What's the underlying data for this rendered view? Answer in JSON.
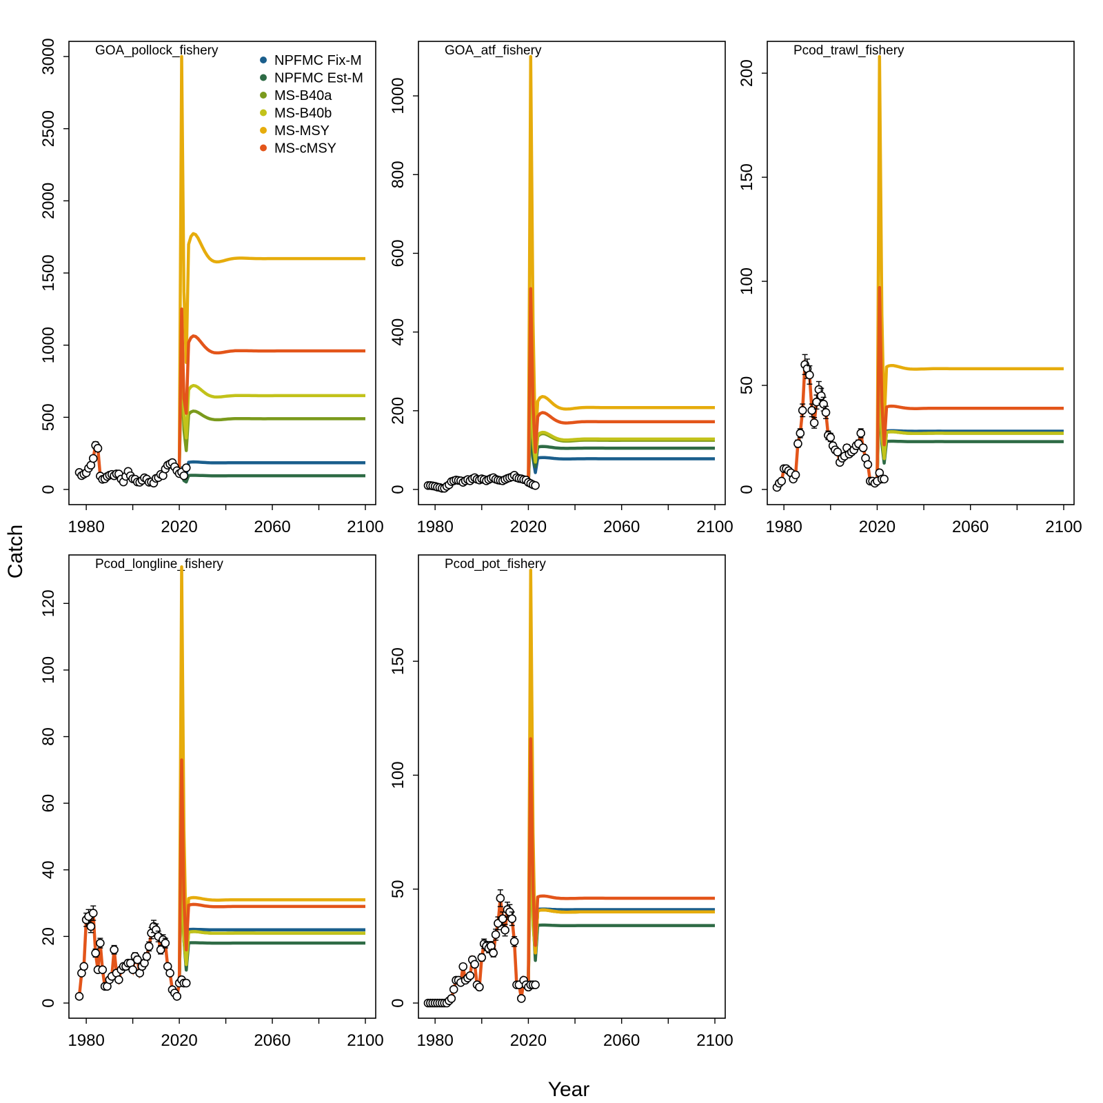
{
  "figure": {
    "ylabel": "Catch",
    "xlabel": "Year"
  },
  "colors": {
    "NPFMC Fix-M": "#1a5e8c",
    "NPFMC Est-M": "#2e6b45",
    "MS-B40a": "#7a9a1c",
    "MS-B40b": "#c2c21a",
    "MS-MSY": "#e6ac0c",
    "MS-cMSY": "#e3551a",
    "observed": "#000000"
  },
  "legend": {
    "location": "top-right of first panel",
    "entries": [
      "NPFMC Fix-M",
      "NPFMC Est-M",
      "MS-B40a",
      "MS-B40b",
      "MS-MSY",
      "MS-cMSY"
    ]
  },
  "chart_data": [
    {
      "type": "line",
      "title": "GOA_pollock_fishery",
      "xlim": [
        1977,
        2100
      ],
      "ylim": [
        0,
        3000
      ],
      "xticks": [
        1980,
        2020,
        2060,
        2100
      ],
      "yticks": [
        0,
        500,
        1000,
        1500,
        2000,
        2500,
        3000
      ],
      "observed": {
        "x": [
          1977,
          1978,
          1979,
          1980,
          1981,
          1982,
          1983,
          1984,
          1985,
          1986,
          1987,
          1988,
          1989,
          1990,
          1991,
          1992,
          1993,
          1994,
          1995,
          1996,
          1997,
          1998,
          1999,
          2000,
          2001,
          2002,
          2003,
          2004,
          2005,
          2006,
          2007,
          2008,
          2009,
          2010,
          2011,
          2012,
          2013,
          2014,
          2015,
          2016,
          2017,
          2018,
          2019,
          2020,
          2021,
          2022,
          2023
        ],
        "y": [
          118,
          96,
          106,
          115,
          147,
          168,
          215,
          306,
          285,
          93,
          70,
          74,
          90,
          99,
          104,
          95,
          108,
          107,
          72,
          52,
          91,
          125,
          95,
          74,
          71,
          52,
          50,
          63,
          81,
          72,
          50,
          52,
          44,
          77,
          82,
          104,
          96,
          142,
          168,
          177,
          186,
          157,
          130,
          110,
          120,
          95,
          150
        ]
      },
      "series": [
        {
          "name": "NPFMC Fix-M",
          "equilibrium": 185
        },
        {
          "name": "NPFMC Est-M",
          "equilibrium": 95
        },
        {
          "name": "MS-B40a",
          "equilibrium": 490
        },
        {
          "name": "MS-B40b",
          "equilibrium": 650
        },
        {
          "name": "MS-MSY",
          "equilibrium": 1600
        },
        {
          "name": "MS-cMSY",
          "equilibrium": 960
        }
      ]
    },
    {
      "type": "line",
      "title": "GOA_atf_fishery",
      "xlim": [
        1977,
        2100
      ],
      "ylim": [
        0,
        1100
      ],
      "xticks": [
        1980,
        2020,
        2060,
        2100
      ],
      "yticks": [
        0,
        200,
        400,
        600,
        800,
        1000
      ],
      "observed": {
        "x": [
          1977,
          1978,
          1979,
          1980,
          1981,
          1982,
          1983,
          1984,
          1985,
          1986,
          1987,
          1988,
          1989,
          1990,
          1991,
          1992,
          1993,
          1994,
          1995,
          1996,
          1997,
          1998,
          1999,
          2000,
          2001,
          2002,
          2003,
          2004,
          2005,
          2006,
          2007,
          2008,
          2009,
          2010,
          2011,
          2012,
          2013,
          2014,
          2015,
          2016,
          2017,
          2018,
          2019,
          2020,
          2021,
          2022,
          2023
        ],
        "y": [
          10,
          10,
          9,
          8,
          6,
          5,
          3,
          3,
          8,
          12,
          20,
          22,
          24,
          23,
          22,
          18,
          22,
          25,
          22,
          27,
          30,
          26,
          24,
          27,
          25,
          22,
          25,
          28,
          30,
          26,
          24,
          23,
          22,
          25,
          28,
          30,
          32,
          36,
          30,
          28,
          27,
          25,
          24,
          18,
          15,
          12,
          10
        ]
      },
      "series": [
        {
          "name": "NPFMC Fix-M",
          "equilibrium": 78
        },
        {
          "name": "NPFMC Est-M",
          "equilibrium": 105
        },
        {
          "name": "MS-B40a",
          "equilibrium": 125
        },
        {
          "name": "MS-B40b",
          "equilibrium": 128
        },
        {
          "name": "MS-MSY",
          "equilibrium": 208
        },
        {
          "name": "MS-cMSY",
          "equilibrium": 172
        }
      ]
    },
    {
      "type": "line",
      "title": "Pcod_trawl_fishery",
      "xlim": [
        1977,
        2100
      ],
      "ylim": [
        0,
        208
      ],
      "xticks": [
        1980,
        2020,
        2060,
        2100
      ],
      "yticks": [
        0,
        50,
        100,
        150,
        200
      ],
      "observed": {
        "x": [
          1977,
          1978,
          1979,
          1980,
          1981,
          1982,
          1983,
          1984,
          1985,
          1986,
          1987,
          1988,
          1989,
          1990,
          1991,
          1992,
          1993,
          1994,
          1995,
          1996,
          1997,
          1998,
          1999,
          2000,
          2001,
          2002,
          2003,
          2004,
          2005,
          2006,
          2007,
          2008,
          2009,
          2010,
          2011,
          2012,
          2013,
          2014,
          2015,
          2016,
          2017,
          2018,
          2019,
          2020,
          2021,
          2022,
          2023
        ],
        "y": [
          1,
          3,
          4,
          10,
          10,
          9,
          8,
          5,
          7,
          22,
          27,
          38,
          60,
          58,
          55,
          38,
          32,
          42,
          48,
          45,
          41,
          37,
          26,
          25,
          21,
          19,
          18,
          13,
          15,
          16,
          20,
          17,
          18,
          19,
          21,
          22,
          27,
          20,
          15,
          12,
          4,
          4,
          3,
          4,
          8,
          5,
          5
        ]
      },
      "series": [
        {
          "name": "NPFMC Fix-M",
          "equilibrium": 28
        },
        {
          "name": "NPFMC Est-M",
          "equilibrium": 23
        },
        {
          "name": "MS-B40a",
          "equilibrium": 27
        },
        {
          "name": "MS-B40b",
          "equilibrium": 27
        },
        {
          "name": "MS-MSY",
          "equilibrium": 58
        },
        {
          "name": "MS-cMSY",
          "equilibrium": 39
        }
      ]
    },
    {
      "type": "line",
      "title": "Pcod_longline_fishery",
      "xlim": [
        1977,
        2100
      ],
      "ylim": [
        0,
        130
      ],
      "xticks": [
        1980,
        2020,
        2060,
        2100
      ],
      "yticks": [
        0,
        20,
        40,
        60,
        80,
        100,
        120
      ],
      "observed": {
        "x": [
          1977,
          1978,
          1979,
          1980,
          1981,
          1982,
          1983,
          1984,
          1985,
          1986,
          1987,
          1988,
          1989,
          1990,
          1991,
          1992,
          1993,
          1994,
          1995,
          1996,
          1997,
          1998,
          1999,
          2000,
          2001,
          2002,
          2003,
          2004,
          2005,
          2006,
          2007,
          2008,
          2009,
          2010,
          2011,
          2012,
          2013,
          2014,
          2015,
          2016,
          2017,
          2018,
          2019,
          2020,
          2021,
          2022,
          2023
        ],
        "y": [
          2,
          9,
          11,
          25,
          26,
          23,
          27,
          15,
          10,
          18,
          10,
          5,
          5,
          7,
          8,
          16,
          9,
          7,
          10,
          11,
          11,
          12,
          12,
          10,
          14,
          13,
          9,
          11,
          12,
          14,
          17,
          21,
          23,
          22,
          20,
          16,
          19,
          18,
          11,
          9,
          4,
          3,
          2,
          6,
          7,
          6,
          6
        ]
      },
      "series": [
        {
          "name": "NPFMC Fix-M",
          "equilibrium": 22
        },
        {
          "name": "NPFMC Est-M",
          "equilibrium": 18
        },
        {
          "name": "MS-B40a",
          "equilibrium": 21
        },
        {
          "name": "MS-B40b",
          "equilibrium": 21
        },
        {
          "name": "MS-MSY",
          "equilibrium": 31
        },
        {
          "name": "MS-cMSY",
          "equilibrium": 29
        }
      ]
    },
    {
      "type": "line",
      "title": "Pcod_pot_fishery",
      "xlim": [
        1977,
        2100
      ],
      "ylim": [
        0,
        190
      ],
      "xticks": [
        1980,
        2020,
        2060,
        2100
      ],
      "yticks": [
        0,
        50,
        100,
        150
      ],
      "observed": {
        "x": [
          1977,
          1978,
          1979,
          1980,
          1981,
          1982,
          1983,
          1984,
          1985,
          1986,
          1987,
          1988,
          1989,
          1990,
          1991,
          1992,
          1993,
          1994,
          1995,
          1996,
          1997,
          1998,
          1999,
          2000,
          2001,
          2002,
          2003,
          2004,
          2005,
          2006,
          2007,
          2008,
          2009,
          2010,
          2011,
          2012,
          2013,
          2014,
          2015,
          2016,
          2017,
          2018,
          2019,
          2020,
          2021,
          2022,
          2023
        ],
        "y": [
          0,
          0,
          0,
          0,
          0,
          0,
          0,
          0,
          0,
          1,
          2,
          6,
          10,
          10,
          9,
          16,
          10,
          11,
          12,
          19,
          17,
          8,
          7,
          20,
          26,
          25,
          24,
          25,
          22,
          30,
          35,
          46,
          37,
          32,
          41,
          40,
          37,
          27,
          8,
          8,
          2,
          10,
          8,
          7,
          8,
          8,
          8
        ]
      },
      "series": [
        {
          "name": "NPFMC Fix-M",
          "equilibrium": 41
        },
        {
          "name": "NPFMC Est-M",
          "equilibrium": 34
        },
        {
          "name": "MS-B40a",
          "equilibrium": 40
        },
        {
          "name": "MS-B40b",
          "equilibrium": 40
        },
        {
          "name": "MS-MSY",
          "equilibrium": 40
        },
        {
          "name": "MS-cMSY",
          "equilibrium": 46
        }
      ]
    }
  ]
}
